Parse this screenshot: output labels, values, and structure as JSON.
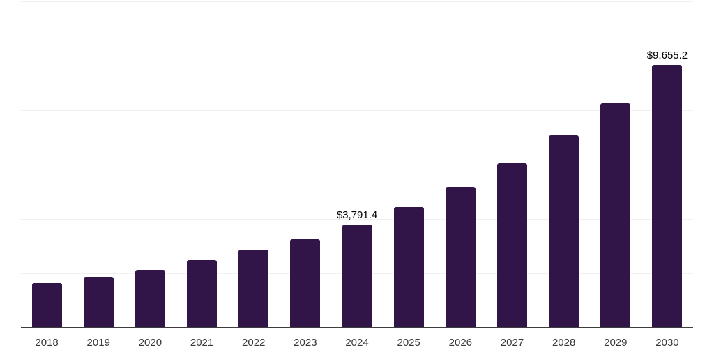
{
  "chart_data": {
    "type": "bar",
    "title": "",
    "xlabel": "",
    "ylabel": "",
    "categories": [
      "2018",
      "2019",
      "2020",
      "2021",
      "2022",
      "2023",
      "2024",
      "2025",
      "2026",
      "2027",
      "2028",
      "2029",
      "2030"
    ],
    "values": [
      1650,
      1880,
      2135,
      2490,
      2875,
      3255,
      3791.4,
      4430,
      5175,
      6055,
      7070,
      8260,
      9655.2
    ],
    "data_labels": [
      "",
      "",
      "",
      "",
      "",
      "",
      "$3,791.4",
      "",
      "",
      "",
      "",
      "",
      "$9,655.2"
    ],
    "ylim": [
      0,
      12000
    ],
    "gridline_interval": 2000,
    "grid": "horizontal gridlines only, no y-axis tick labels",
    "legend_position": "none",
    "colors": {
      "bar": "#311549",
      "gridline": "#f1f1f1",
      "axis_line": "#3d3d3d",
      "tick_text": "#383838",
      "data_label_text": "#000000",
      "background": "#ffffff"
    }
  }
}
